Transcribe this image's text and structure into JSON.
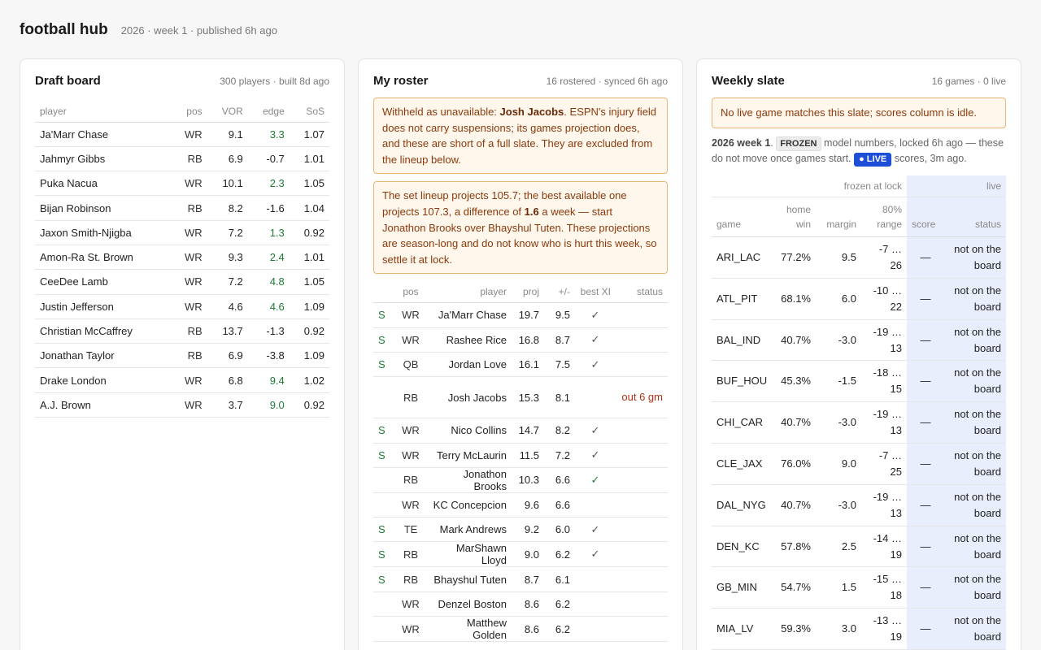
{
  "header": {
    "title": "football hub",
    "subtitle": "2026 · week 1 · published 6h ago"
  },
  "draft": {
    "title": "Draft board",
    "meta": "300 players · built 8d ago",
    "columns": [
      "player",
      "pos",
      "VOR",
      "edge",
      "SoS"
    ],
    "rows": [
      {
        "player": "Ja'Marr Chase",
        "pos": "WR",
        "vor": "9.1",
        "edge": "3.3",
        "edge_pos": true,
        "sos": "1.07"
      },
      {
        "player": "Jahmyr Gibbs",
        "pos": "RB",
        "vor": "6.9",
        "edge": "-0.7",
        "edge_pos": false,
        "sos": "1.01"
      },
      {
        "player": "Puka Nacua",
        "pos": "WR",
        "vor": "10.1",
        "edge": "2.3",
        "edge_pos": true,
        "sos": "1.05"
      },
      {
        "player": "Bijan Robinson",
        "pos": "RB",
        "vor": "8.2",
        "edge": "-1.6",
        "edge_pos": false,
        "sos": "1.04"
      },
      {
        "player": "Jaxon Smith-Njigba",
        "pos": "WR",
        "vor": "7.2",
        "edge": "1.3",
        "edge_pos": true,
        "sos": "0.92"
      },
      {
        "player": "Amon-Ra St. Brown",
        "pos": "WR",
        "vor": "9.3",
        "edge": "2.4",
        "edge_pos": true,
        "sos": "1.01"
      },
      {
        "player": "CeeDee Lamb",
        "pos": "WR",
        "vor": "7.2",
        "edge": "4.8",
        "edge_pos": true,
        "sos": "1.05"
      },
      {
        "player": "Justin Jefferson",
        "pos": "WR",
        "vor": "4.6",
        "edge": "4.6",
        "edge_pos": true,
        "sos": "1.09"
      },
      {
        "player": "Christian McCaffrey",
        "pos": "RB",
        "vor": "13.7",
        "edge": "-1.3",
        "edge_pos": false,
        "sos": "0.92"
      },
      {
        "player": "Jonathan Taylor",
        "pos": "RB",
        "vor": "6.9",
        "edge": "-3.8",
        "edge_pos": false,
        "sos": "1.09"
      },
      {
        "player": "Drake London",
        "pos": "WR",
        "vor": "6.8",
        "edge": "9.4",
        "edge_pos": true,
        "sos": "1.02"
      },
      {
        "player": "A.J. Brown",
        "pos": "WR",
        "vor": "3.7",
        "edge": "9.0",
        "edge_pos": true,
        "sos": "0.92"
      }
    ]
  },
  "roster": {
    "title": "My roster",
    "meta": "16 rostered · synced 6h ago",
    "alert1": {
      "pre": "Withheld as unavailable: ",
      "bold": "Josh Jacobs",
      "post": ". ESPN's injury field does not carry suspensions; its games projection does, and these are short of a full slate. They are excluded from the lineup below."
    },
    "alert2": {
      "pre": "The set lineup projects 105.7; the best available one projects 107.3, a difference of ",
      "bold": "1.6",
      "post": " a week — start Jonathon Brooks over Bhayshul Tuten. These projections are season-long and do not know who is hurt this week, so settle it at lock."
    },
    "columns": [
      "",
      "pos",
      "player",
      "proj",
      "+/-",
      "best XI",
      "status"
    ],
    "rows": [
      {
        "start": "S",
        "pos": "WR",
        "player": "Ja'Marr Chase",
        "proj": "19.7",
        "pm": "9.5",
        "best": "✓",
        "best_green": false,
        "status": ""
      },
      {
        "start": "S",
        "pos": "WR",
        "player": "Rashee Rice",
        "proj": "16.8",
        "pm": "8.7",
        "best": "✓",
        "best_green": false,
        "status": ""
      },
      {
        "start": "S",
        "pos": "QB",
        "player": "Jordan Love",
        "proj": "16.1",
        "pm": "7.5",
        "best": "✓",
        "best_green": false,
        "status": ""
      },
      {
        "start": "",
        "pos": "RB",
        "player": "Josh Jacobs",
        "proj": "15.3",
        "pm": "8.1",
        "best": "",
        "best_green": false,
        "status": "out 6 gm"
      },
      {
        "start": "S",
        "pos": "WR",
        "player": "Nico Collins",
        "proj": "14.7",
        "pm": "8.2",
        "best": "✓",
        "best_green": false,
        "status": ""
      },
      {
        "start": "S",
        "pos": "WR",
        "player": "Terry McLaurin",
        "proj": "11.5",
        "pm": "7.2",
        "best": "✓",
        "best_green": false,
        "status": ""
      },
      {
        "start": "",
        "pos": "RB",
        "player": "Jonathon Brooks",
        "proj": "10.3",
        "pm": "6.6",
        "best": "✓",
        "best_green": true,
        "status": ""
      },
      {
        "start": "",
        "pos": "WR",
        "player": "KC Concepcion",
        "proj": "9.6",
        "pm": "6.6",
        "best": "",
        "best_green": false,
        "status": ""
      },
      {
        "start": "S",
        "pos": "TE",
        "player": "Mark Andrews",
        "proj": "9.2",
        "pm": "6.0",
        "best": "✓",
        "best_green": false,
        "status": ""
      },
      {
        "start": "S",
        "pos": "RB",
        "player": "MarShawn Lloyd",
        "proj": "9.0",
        "pm": "6.2",
        "best": "✓",
        "best_green": false,
        "status": ""
      },
      {
        "start": "S",
        "pos": "RB",
        "player": "Bhayshul Tuten",
        "proj": "8.7",
        "pm": "6.1",
        "best": "",
        "best_green": false,
        "status": ""
      },
      {
        "start": "",
        "pos": "WR",
        "player": "Denzel Boston",
        "proj": "8.6",
        "pm": "6.2",
        "best": "",
        "best_green": false,
        "status": ""
      },
      {
        "start": "",
        "pos": "WR",
        "player": "Matthew Golden",
        "proj": "8.6",
        "pm": "6.2",
        "best": "",
        "best_green": false,
        "status": ""
      }
    ]
  },
  "slate": {
    "title": "Weekly slate",
    "meta": "16 games · 0 live",
    "alert": "No live game matches this slate; scores column is idle.",
    "note": {
      "week": "2026 week 1",
      "dot": ".",
      "frozen": "FROZEN",
      "mid": "model numbers, locked 6h ago — these do not move once games start.",
      "live": "● LIVE",
      "tail": "scores, 3m ago."
    },
    "group_frozen": "frozen at lock",
    "group_live": "live",
    "columns": [
      "game",
      "home win",
      "margin",
      "80% range",
      "score",
      "status"
    ],
    "rows": [
      {
        "game": "ARI_LAC",
        "home_win": "77.2%",
        "margin": "9.5",
        "range": "-7 … 26",
        "score": "—",
        "status": "not on the board"
      },
      {
        "game": "ATL_PIT",
        "home_win": "68.1%",
        "margin": "6.0",
        "range": "-10 … 22",
        "score": "—",
        "status": "not on the board"
      },
      {
        "game": "BAL_IND",
        "home_win": "40.7%",
        "margin": "-3.0",
        "range": "-19 … 13",
        "score": "—",
        "status": "not on the board"
      },
      {
        "game": "BUF_HOU",
        "home_win": "45.3%",
        "margin": "-1.5",
        "range": "-18 … 15",
        "score": "—",
        "status": "not on the board"
      },
      {
        "game": "CHI_CAR",
        "home_win": "40.7%",
        "margin": "-3.0",
        "range": "-19 … 13",
        "score": "—",
        "status": "not on the board"
      },
      {
        "game": "CLE_JAX",
        "home_win": "76.0%",
        "margin": "9.0",
        "range": "-7 … 25",
        "score": "—",
        "status": "not on the board"
      },
      {
        "game": "DAL_NYG",
        "home_win": "40.7%",
        "margin": "-3.0",
        "range": "-19 … 13",
        "score": "—",
        "status": "not on the board"
      },
      {
        "game": "DEN_KC",
        "home_win": "57.8%",
        "margin": "2.5",
        "range": "-14 … 19",
        "score": "—",
        "status": "not on the board"
      },
      {
        "game": "GB_MIN",
        "home_win": "54.7%",
        "margin": "1.5",
        "range": "-15 … 18",
        "score": "—",
        "status": "not on the board"
      },
      {
        "game": "MIA_LV",
        "home_win": "59.3%",
        "margin": "3.0",
        "range": "-13 … 19",
        "score": "—",
        "status": "not on the board"
      }
    ]
  }
}
